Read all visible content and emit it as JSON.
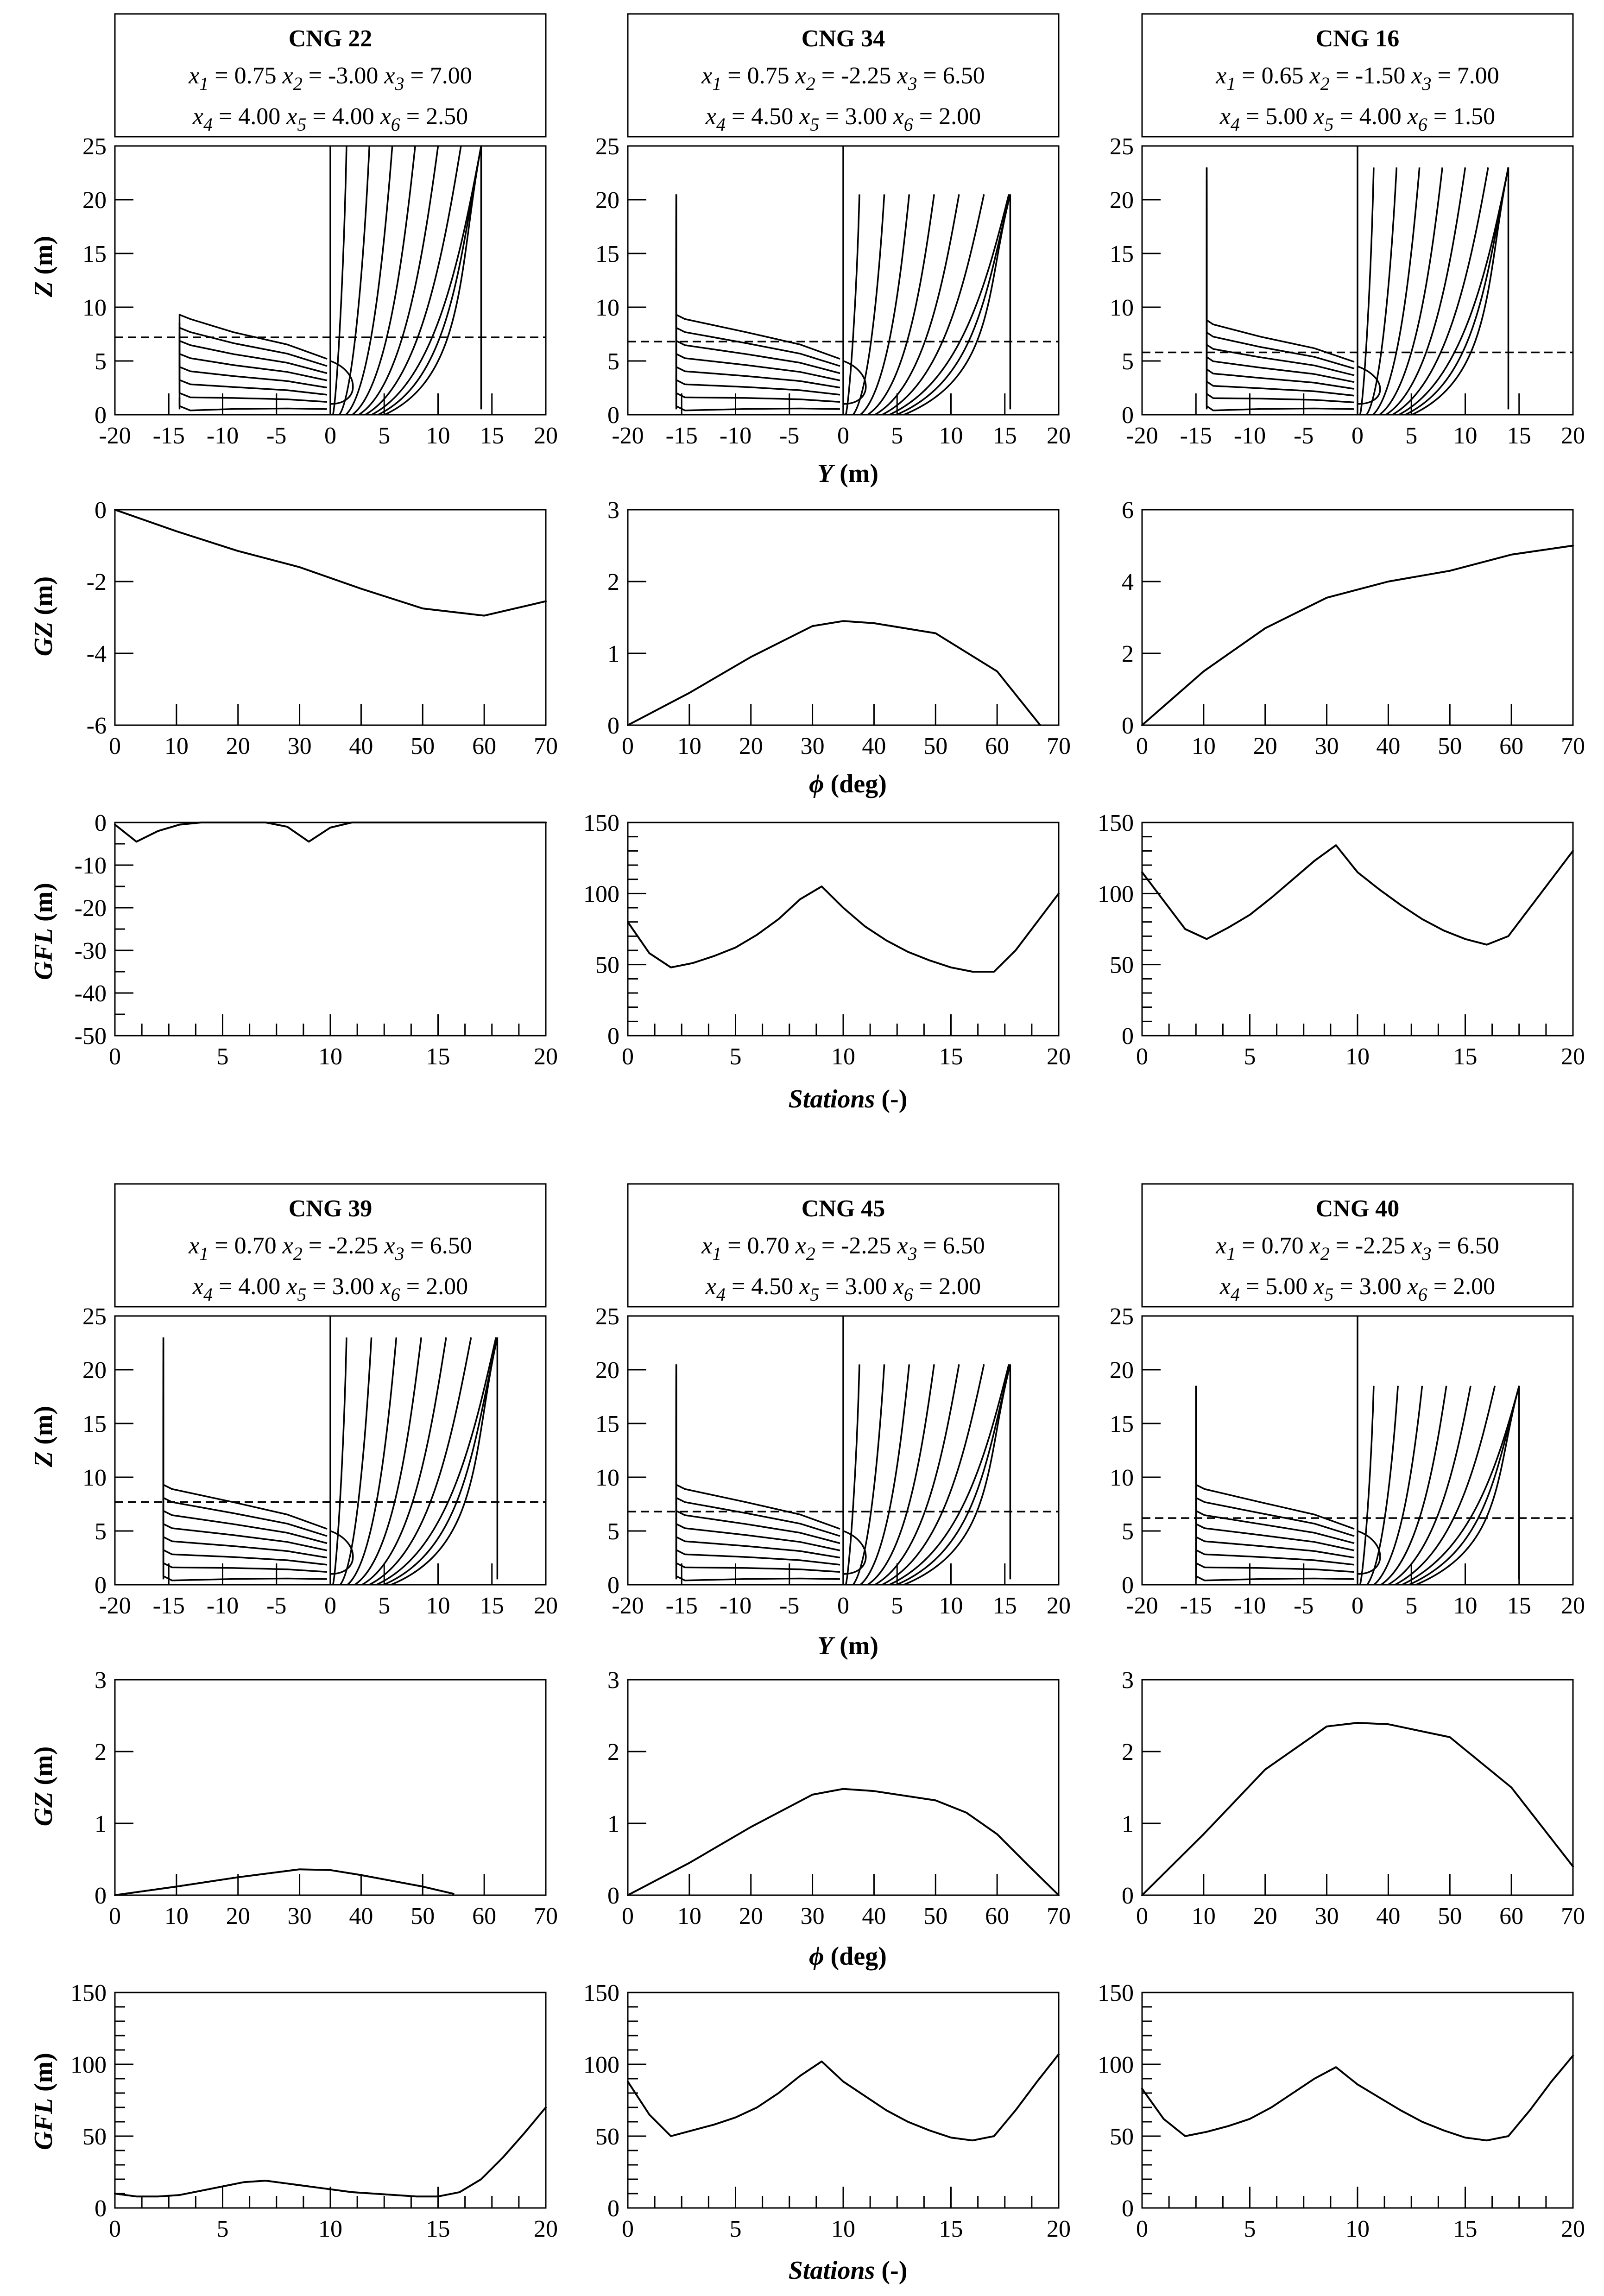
{
  "chart_data": [
    {
      "type": "line",
      "name": "CNG 22",
      "title": "CNG 22",
      "params": [
        {
          "sym": "x",
          "idx": "1",
          "val": "0.75"
        },
        {
          "sym": "x",
          "idx": "2",
          "val": "-3.00"
        },
        {
          "sym": "x",
          "idx": "3",
          "val": "7.00"
        },
        {
          "sym": "x",
          "idx": "4",
          "val": "4.00"
        },
        {
          "sym": "x",
          "idx": "5",
          "val": "4.00"
        },
        {
          "sym": "x",
          "idx": "6",
          "val": "2.50"
        }
      ],
      "body_plan": {
        "half_breadth": 14,
        "bilge": 2.5,
        "deck_left": 9,
        "deck_right": 25,
        "flat": 4,
        "waterline": 7.2,
        "xlim": [
          -20,
          20
        ],
        "ylim": [
          0,
          25
        ]
      },
      "gz": {
        "x": [
          0,
          10,
          20,
          30,
          40,
          50,
          60,
          70
        ],
        "y": [
          0,
          -0.6,
          -1.15,
          -1.6,
          -2.2,
          -2.75,
          -2.95,
          -2.55
        ],
        "ylim": [
          -6,
          0
        ]
      },
      "gfl": {
        "x": [
          0,
          1,
          2,
          3,
          4,
          5,
          6,
          7,
          8,
          9,
          10,
          11,
          20
        ],
        "y": [
          -0.5,
          -4.5,
          -2,
          -0.5,
          0,
          0,
          0,
          0,
          -1,
          -4.5,
          -1.2,
          0,
          0
        ],
        "ylim": [
          -50,
          0
        ]
      }
    },
    {
      "type": "line",
      "name": "CNG 34",
      "title": "CNG 34",
      "params": [
        {
          "sym": "x",
          "idx": "1",
          "val": "0.75"
        },
        {
          "sym": "x",
          "idx": "2",
          "val": "-2.25"
        },
        {
          "sym": "x",
          "idx": "3",
          "val": "6.50"
        },
        {
          "sym": "x",
          "idx": "4",
          "val": "4.50"
        },
        {
          "sym": "x",
          "idx": "5",
          "val": "3.00"
        },
        {
          "sym": "x",
          "idx": "6",
          "val": "2.00"
        }
      ],
      "body_plan": {
        "half_breadth": 15.5,
        "bilge": 2,
        "deck_left": 20.5,
        "deck_right": 20.5,
        "flat": 4,
        "waterline": 6.8,
        "xlim": [
          -20,
          20
        ],
        "ylim": [
          0,
          25
        ]
      },
      "gz": {
        "x": [
          0,
          10,
          20,
          30,
          35,
          40,
          50,
          60,
          67
        ],
        "y": [
          0,
          0.45,
          0.95,
          1.38,
          1.45,
          1.42,
          1.28,
          0.75,
          0
        ],
        "ylim": [
          0,
          3
        ]
      },
      "gfl": {
        "x": [
          0,
          1,
          2,
          3,
          4,
          5,
          6,
          7,
          8,
          9,
          10,
          11,
          12,
          13,
          14,
          15,
          16,
          17,
          18,
          19,
          20
        ],
        "y": [
          80,
          58,
          48,
          51,
          56,
          62,
          71,
          82,
          96,
          105,
          90,
          77,
          67,
          59,
          53,
          48,
          45,
          45,
          60,
          80,
          100
        ],
        "ylim": [
          0,
          150
        ]
      }
    },
    {
      "type": "line",
      "name": "CNG 16",
      "title": "CNG 16",
      "params": [
        {
          "sym": "x",
          "idx": "1",
          "val": "0.65"
        },
        {
          "sym": "x",
          "idx": "2",
          "val": "-1.50"
        },
        {
          "sym": "x",
          "idx": "3",
          "val": "7.00"
        },
        {
          "sym": "x",
          "idx": "4",
          "val": "5.00"
        },
        {
          "sym": "x",
          "idx": "5",
          "val": "4.00"
        },
        {
          "sym": "x",
          "idx": "6",
          "val": "1.50"
        }
      ],
      "body_plan": {
        "half_breadth": 14,
        "bilge": 1.5,
        "deck_left": 23,
        "deck_right": 23,
        "flat": 3.5,
        "waterline": 5.8,
        "xlim": [
          -20,
          20
        ],
        "ylim": [
          0,
          25
        ]
      },
      "gz": {
        "x": [
          0,
          10,
          20,
          30,
          40,
          50,
          60,
          70
        ],
        "y": [
          0,
          1.5,
          2.7,
          3.55,
          4.0,
          4.3,
          4.75,
          5.0
        ],
        "ylim": [
          0,
          6
        ]
      },
      "gfl": {
        "x": [
          0,
          1,
          2,
          3,
          4,
          5,
          6,
          7,
          8,
          9,
          10,
          11,
          12,
          13,
          14,
          15,
          16,
          17,
          18,
          19,
          20
        ],
        "y": [
          115,
          95,
          75,
          68,
          76,
          85,
          97,
          110,
          123,
          134,
          115,
          103,
          92,
          82,
          74,
          68,
          64,
          70,
          90,
          110,
          130
        ],
        "ylim": [
          0,
          150
        ]
      }
    },
    {
      "type": "line",
      "name": "CNG 39",
      "title": "CNG 39",
      "params": [
        {
          "sym": "x",
          "idx": "1",
          "val": "0.70"
        },
        {
          "sym": "x",
          "idx": "2",
          "val": "-2.25"
        },
        {
          "sym": "x",
          "idx": "3",
          "val": "6.50"
        },
        {
          "sym": "x",
          "idx": "4",
          "val": "4.00"
        },
        {
          "sym": "x",
          "idx": "5",
          "val": "3.00"
        },
        {
          "sym": "x",
          "idx": "6",
          "val": "2.00"
        }
      ],
      "body_plan": {
        "half_breadth": 15.5,
        "bilge": 2,
        "deck_left": 23,
        "deck_right": 23,
        "flat": 4,
        "waterline": 7.7,
        "xlim": [
          -20,
          20
        ],
        "ylim": [
          0,
          25
        ]
      },
      "gz": {
        "x": [
          0,
          10,
          20,
          30,
          35,
          40,
          50,
          55
        ],
        "y": [
          0,
          0.12,
          0.25,
          0.36,
          0.35,
          0.28,
          0.12,
          0.02
        ],
        "ylim": [
          0,
          3
        ]
      },
      "gfl": {
        "x": [
          0,
          1,
          2,
          3,
          4,
          5,
          6,
          7,
          8,
          9,
          10,
          11,
          12,
          13,
          14,
          15,
          16,
          17,
          18,
          19,
          20
        ],
        "y": [
          10,
          8,
          8,
          9,
          12,
          15,
          18,
          19,
          17,
          15,
          13,
          11,
          10,
          9,
          8,
          8,
          11,
          20,
          35,
          52,
          70
        ],
        "ylim": [
          0,
          150
        ]
      }
    },
    {
      "type": "line",
      "name": "CNG 45",
      "title": "CNG 45",
      "params": [
        {
          "sym": "x",
          "idx": "1",
          "val": "0.70"
        },
        {
          "sym": "x",
          "idx": "2",
          "val": "-2.25"
        },
        {
          "sym": "x",
          "idx": "3",
          "val": "6.50"
        },
        {
          "sym": "x",
          "idx": "4",
          "val": "4.50"
        },
        {
          "sym": "x",
          "idx": "5",
          "val": "3.00"
        },
        {
          "sym": "x",
          "idx": "6",
          "val": "2.00"
        }
      ],
      "body_plan": {
        "half_breadth": 15.5,
        "bilge": 2,
        "deck_left": 20.5,
        "deck_right": 20.5,
        "flat": 4,
        "waterline": 6.8,
        "xlim": [
          -20,
          20
        ],
        "ylim": [
          0,
          25
        ]
      },
      "gz": {
        "x": [
          0,
          10,
          20,
          30,
          35,
          40,
          50,
          55,
          60,
          65,
          70
        ],
        "y": [
          0,
          0.45,
          0.95,
          1.4,
          1.48,
          1.45,
          1.32,
          1.15,
          0.85,
          0.42,
          0
        ],
        "ylim": [
          0,
          3
        ]
      },
      "gfl": {
        "x": [
          0,
          1,
          2,
          3,
          4,
          5,
          6,
          7,
          8,
          9,
          10,
          11,
          12,
          13,
          14,
          15,
          16,
          17,
          18,
          19,
          20
        ],
        "y": [
          88,
          65,
          50,
          54,
          58,
          63,
          70,
          80,
          92,
          102,
          88,
          78,
          68,
          60,
          54,
          49,
          47,
          50,
          68,
          88,
          107
        ],
        "ylim": [
          0,
          150
        ]
      }
    },
    {
      "type": "line",
      "name": "CNG 40",
      "title": "CNG 40",
      "params": [
        {
          "sym": "x",
          "idx": "1",
          "val": "0.70"
        },
        {
          "sym": "x",
          "idx": "2",
          "val": "-2.25"
        },
        {
          "sym": "x",
          "idx": "3",
          "val": "6.50"
        },
        {
          "sym": "x",
          "idx": "4",
          "val": "5.00"
        },
        {
          "sym": "x",
          "idx": "5",
          "val": "3.00"
        },
        {
          "sym": "x",
          "idx": "6",
          "val": "2.00"
        }
      ],
      "body_plan": {
        "half_breadth": 15,
        "bilge": 2,
        "deck_left": 18.5,
        "deck_right": 18.5,
        "flat": 4,
        "waterline": 6.2,
        "xlim": [
          -20,
          20
        ],
        "ylim": [
          0,
          25
        ]
      },
      "gz": {
        "x": [
          0,
          10,
          20,
          30,
          35,
          40,
          50,
          60,
          70
        ],
        "y": [
          0,
          0.85,
          1.75,
          2.35,
          2.4,
          2.38,
          2.2,
          1.5,
          0.4
        ],
        "ylim": [
          0,
          3
        ]
      },
      "gfl": {
        "x": [
          0,
          1,
          2,
          3,
          4,
          5,
          6,
          7,
          8,
          9,
          10,
          11,
          12,
          13,
          14,
          15,
          16,
          17,
          18,
          19,
          20
        ],
        "y": [
          83,
          62,
          50,
          53,
          57,
          62,
          70,
          80,
          90,
          98,
          86,
          77,
          68,
          60,
          54,
          49,
          47,
          50,
          68,
          88,
          106
        ],
        "ylim": [
          0,
          150
        ]
      }
    }
  ],
  "axis_labels": {
    "z_sym": "Z",
    "z_unit": " (m)",
    "y_sym": "Y",
    "y_unit": " (m)",
    "gz_sym": "GZ",
    "gz_unit": " (m)",
    "phi_sym": "ϕ",
    "phi_unit": " (deg)",
    "gfl_sym": "GFL",
    "gfl_unit": " (m)",
    "stations_sym": "Stations",
    "stations_unit": " (-)"
  },
  "ticks": {
    "z": [
      "0",
      "5",
      "10",
      "15",
      "20",
      "25"
    ],
    "y": [
      "-20",
      "-15",
      "-10",
      "-5",
      "0",
      "5",
      "10",
      "15",
      "20"
    ],
    "phi": [
      "0",
      "10",
      "20",
      "30",
      "40",
      "50",
      "60",
      "70"
    ],
    "stations": [
      "0",
      "5",
      "10",
      "15",
      "20"
    ],
    "gz_a": [
      "0",
      "-2",
      "-4",
      "-6"
    ],
    "gz_b": [
      "0",
      "1",
      "2",
      "3"
    ],
    "gz_c": [
      "0",
      "2",
      "4",
      "6"
    ],
    "gfl_a": [
      "0",
      "-10",
      "-20",
      "-30",
      "-40",
      "-50"
    ],
    "gfl_b": [
      "0",
      "50",
      "100",
      "150"
    ]
  }
}
